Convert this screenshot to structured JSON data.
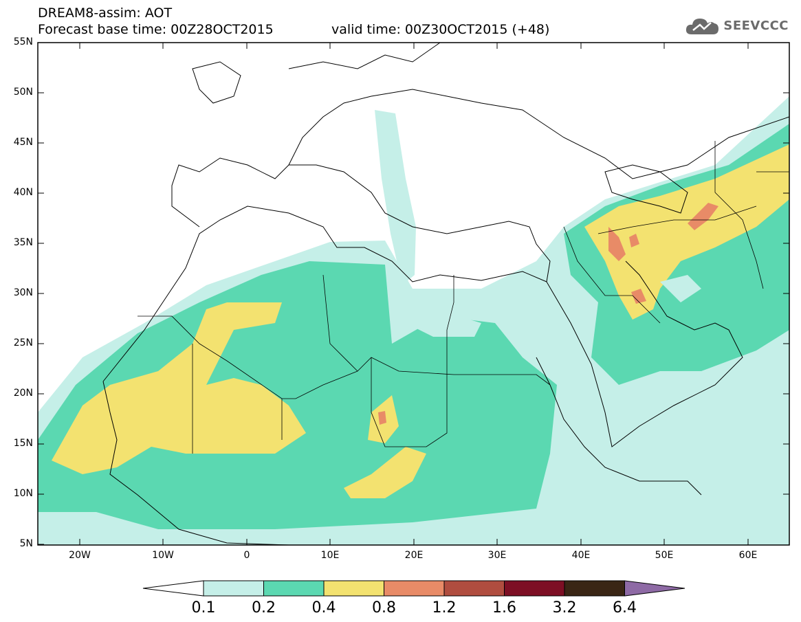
{
  "header": {
    "line1": "DREAM8-assim: AOT",
    "line2": "Forecast base time: 00Z28OCT2015",
    "line3": "valid time: 00Z30OCT2015 (+48)"
  },
  "logo": {
    "text": "SEEVCCC",
    "icon": "cloud-icon",
    "color": "#6b6b6b"
  },
  "map": {
    "lon_range": [
      -25,
      65
    ],
    "lat_range": [
      5,
      55
    ],
    "lat_labels": [
      "55N",
      "50N",
      "45N",
      "40N",
      "35N",
      "30N",
      "25N",
      "20N",
      "15N",
      "10N",
      "5N"
    ],
    "lon_labels": [
      "20W",
      "10W",
      "0",
      "10E",
      "20E",
      "30E",
      "40E",
      "50E",
      "60E"
    ],
    "field": "Aerosol optical thickness (AOT)"
  },
  "colorbar": {
    "colors": [
      "#ffffff",
      "#c5efe8",
      "#5bd8b1",
      "#f3e270",
      "#e88b67",
      "#b04d3f",
      "#7d0f24",
      "#3a2615",
      "#8e6aa5"
    ],
    "ticks": [
      "0.1",
      "0.2",
      "0.4",
      "0.8",
      "1.2",
      "1.6",
      "3.2",
      "6.4"
    ]
  }
}
